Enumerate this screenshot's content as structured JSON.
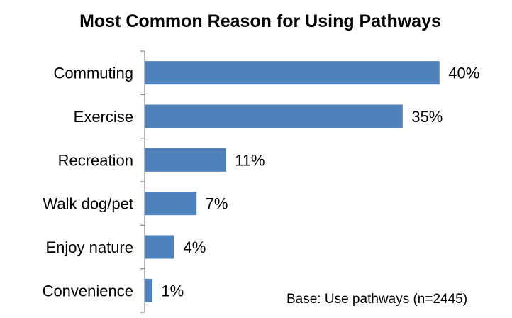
{
  "chart_data": {
    "type": "bar",
    "orientation": "horizontal",
    "title": "Most Common Reason for Using Pathways",
    "categories": [
      "Commuting",
      "Exercise",
      "Recreation",
      "Walk dog/pet",
      "Enjoy nature",
      "Convenience"
    ],
    "values": [
      40,
      35,
      11,
      7,
      4,
      1
    ],
    "value_labels": [
      "40%",
      "35%",
      "11%",
      "7%",
      "4%",
      "1%"
    ],
    "xlim": [
      0,
      42
    ],
    "grid": false,
    "legend": "none",
    "annotation": "Base: Use pathways (n=2445)",
    "bar_color": "#4F81BD"
  }
}
